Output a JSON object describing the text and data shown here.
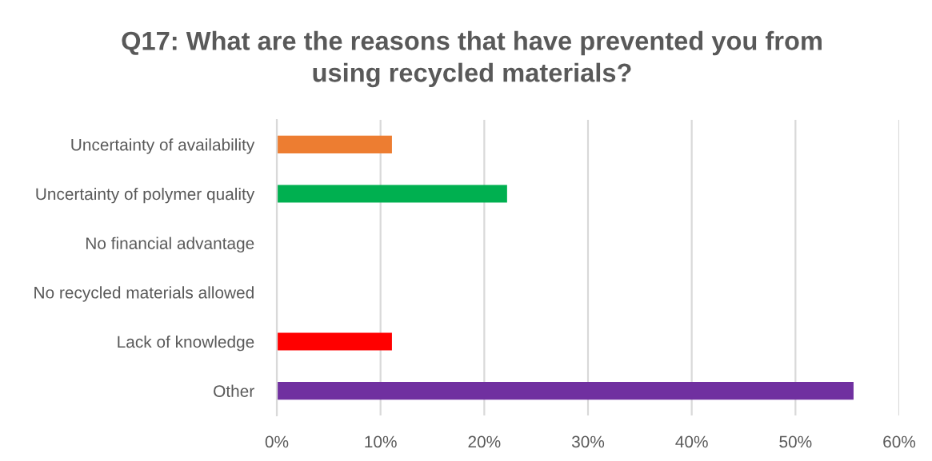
{
  "chart_data": {
    "type": "bar",
    "orientation": "horizontal",
    "title": "Q17: What are the reasons that have prevented you from\nusing recycled materials?",
    "categories": [
      "Uncertainty of availability",
      "Uncertainty of polymer quality",
      "No financial advantage",
      "No recycled materials allowed",
      "Lack of knowledge",
      "Other"
    ],
    "values": [
      11.1,
      22.2,
      0,
      0,
      11.1,
      55.6
    ],
    "colors": [
      "#ed7d31",
      "#00b050",
      null,
      null,
      "#ff0000",
      "#7030a0"
    ],
    "xlim": [
      0,
      60
    ],
    "xticks": [
      {
        "value": 0,
        "label": "0%"
      },
      {
        "value": 10,
        "label": "10%"
      },
      {
        "value": 20,
        "label": "20%"
      },
      {
        "value": 30,
        "label": "30%"
      },
      {
        "value": 40,
        "label": "40%"
      },
      {
        "value": 50,
        "label": "50%"
      },
      {
        "value": 60,
        "label": "60%"
      }
    ],
    "grid": "x"
  }
}
